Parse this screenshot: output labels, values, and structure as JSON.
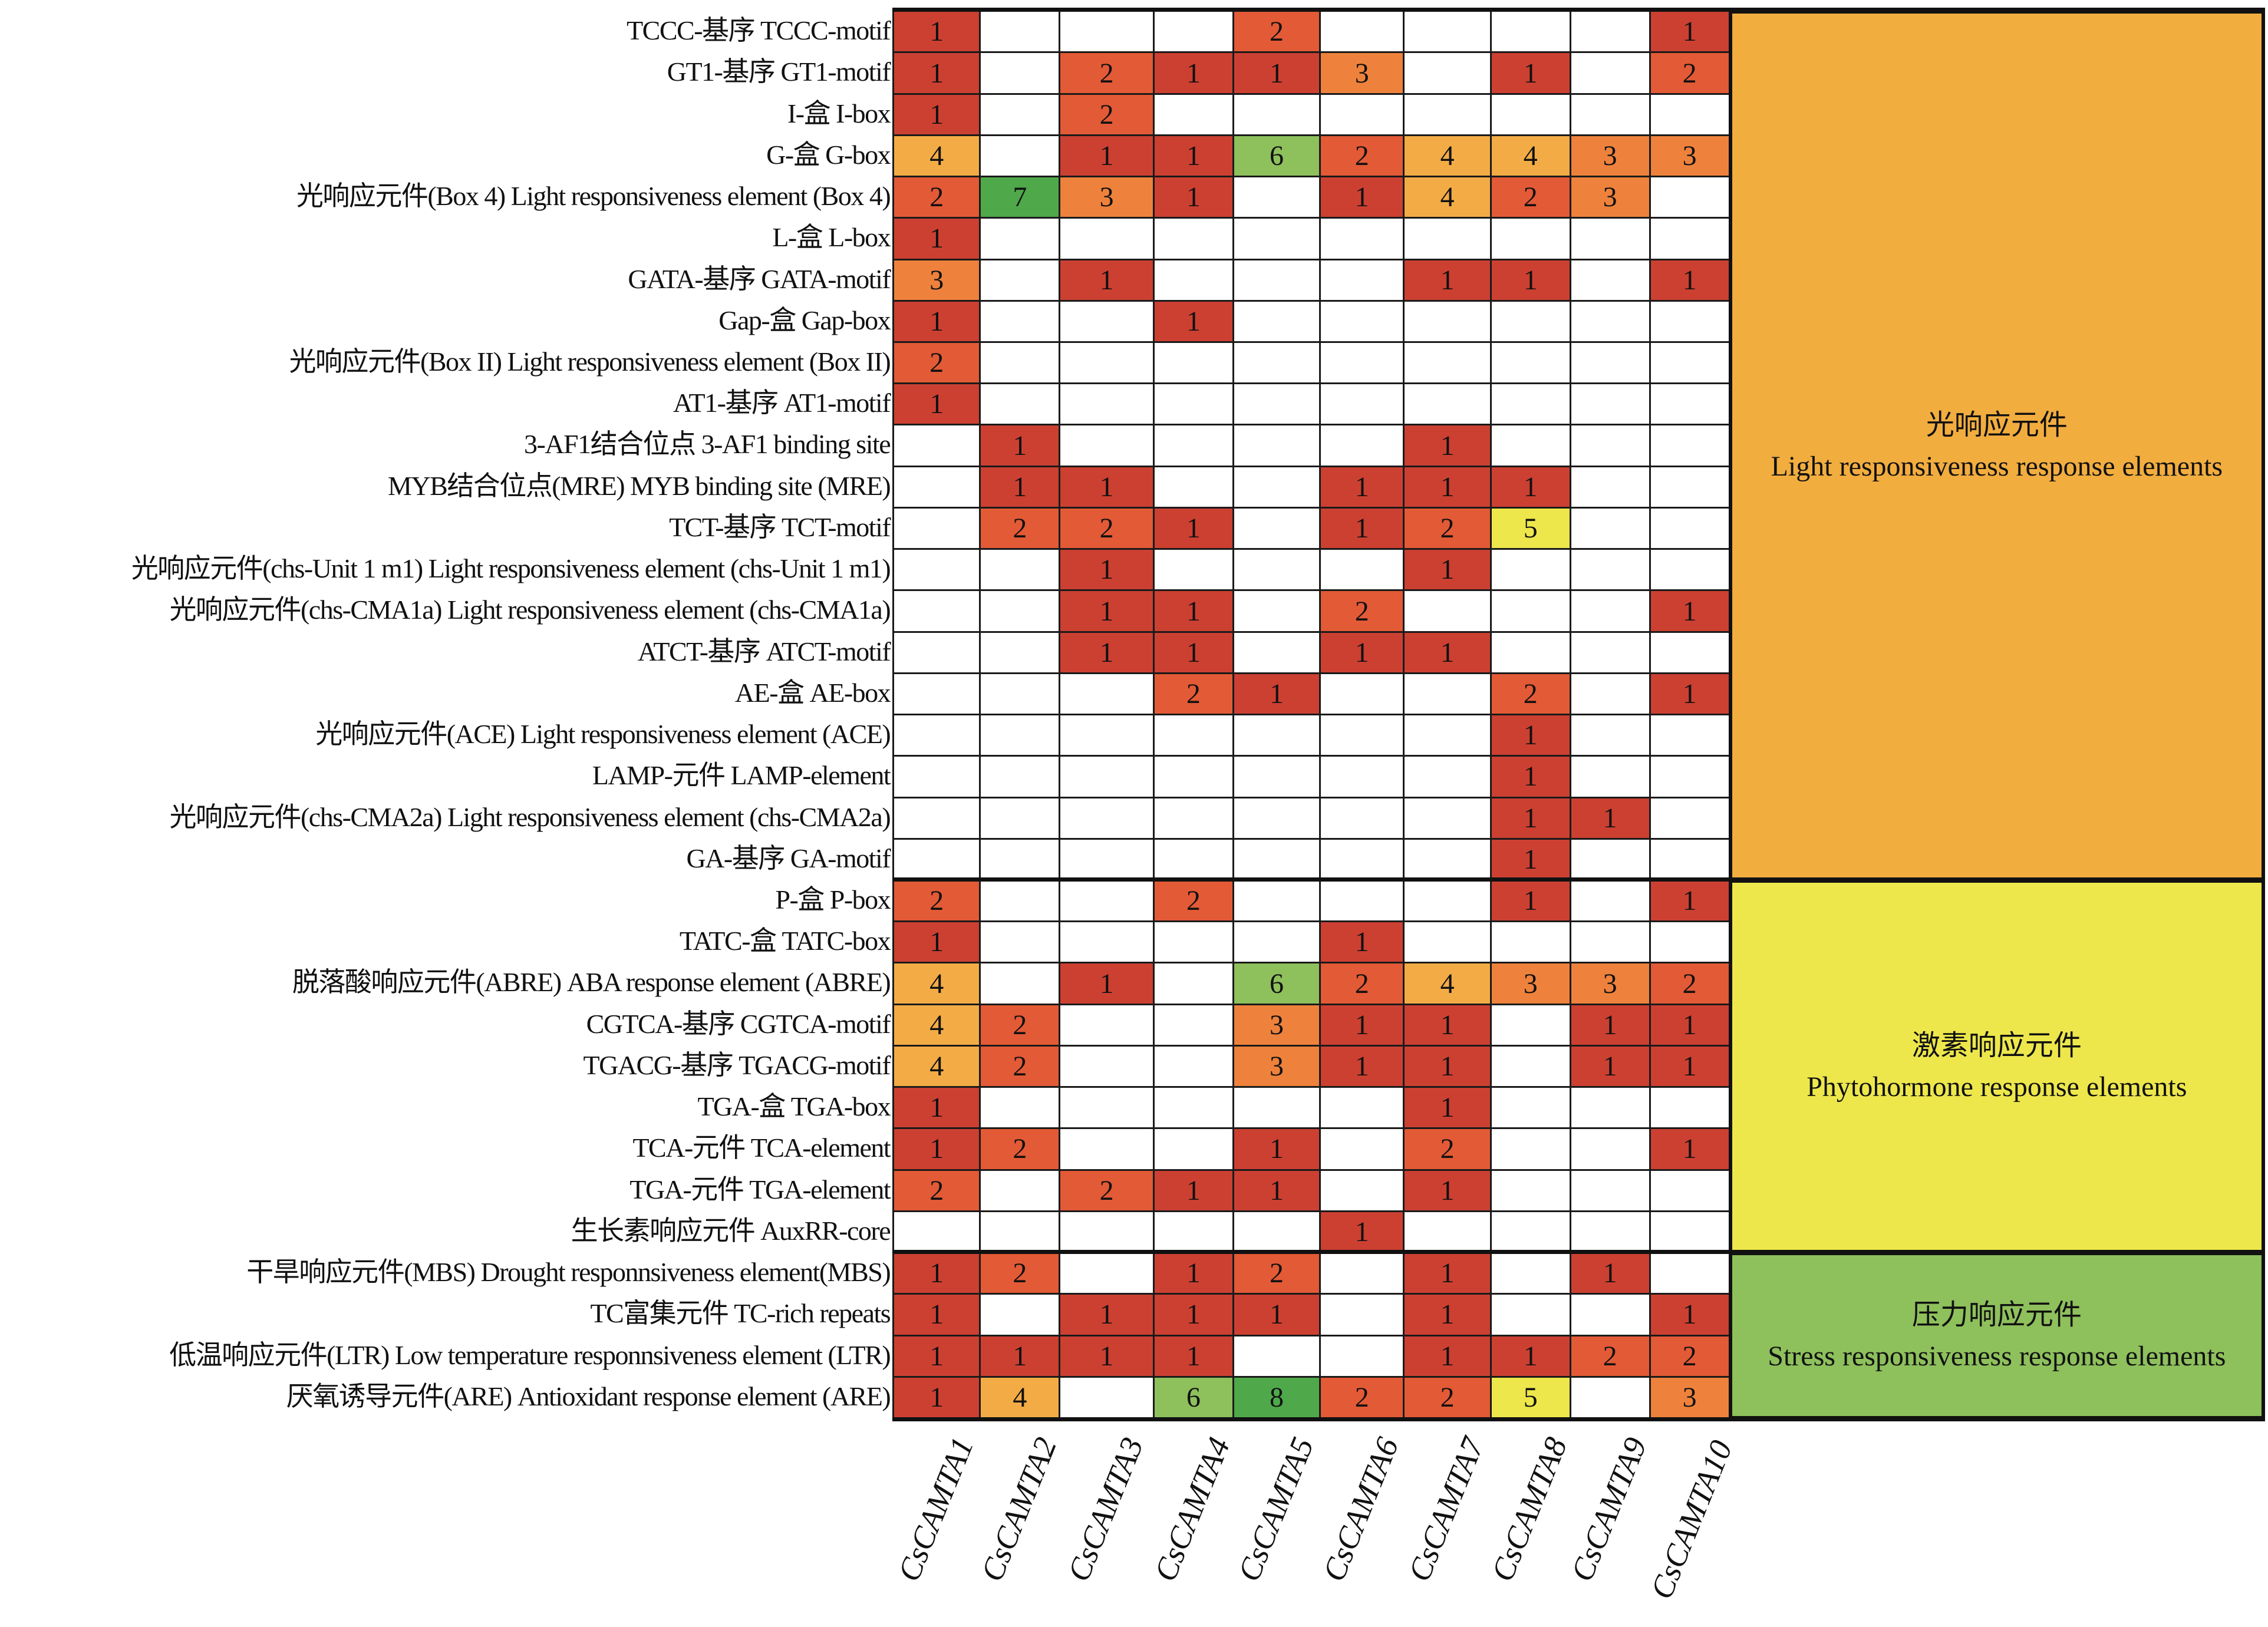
{
  "chart_data": {
    "type": "heatmap",
    "title": "",
    "columns": [
      "CsCAMTA1",
      "CsCAMTA2",
      "CsCAMTA3",
      "CsCAMTA4",
      "CsCAMTA5",
      "CsCAMTA6",
      "CsCAMTA7",
      "CsCAMTA8",
      "CsCAMTA9",
      "CsCAMTA10"
    ],
    "color_scale": {
      "1": "#cc4032",
      "2": "#e35a36",
      "3": "#ee823c",
      "4": "#f3ac45",
      "5": "#ede74c",
      "6": "#8ec05c",
      "7": "#4fa94a",
      "8": "#4fa94a",
      "empty": "#ffffff"
    },
    "rows": [
      {
        "label": "TCCC-基序 TCCC-motif",
        "group": 0,
        "values": [
          1,
          null,
          null,
          null,
          2,
          null,
          null,
          null,
          null,
          1
        ]
      },
      {
        "label": "GT1-基序 GT1-motif",
        "group": 0,
        "values": [
          1,
          null,
          2,
          1,
          1,
          3,
          null,
          1,
          null,
          2
        ]
      },
      {
        "label": "I-盒 I-box",
        "group": 0,
        "values": [
          1,
          null,
          2,
          null,
          null,
          null,
          null,
          null,
          null,
          null
        ]
      },
      {
        "label": "G-盒 G-box",
        "group": 0,
        "values": [
          4,
          null,
          1,
          1,
          6,
          2,
          4,
          4,
          3,
          3
        ]
      },
      {
        "label": "光响应元件(Box 4) Light responsiveness element (Box 4)",
        "group": 0,
        "values": [
          2,
          7,
          3,
          1,
          null,
          1,
          4,
          2,
          3,
          null
        ]
      },
      {
        "label": "L-盒 L-box",
        "group": 0,
        "values": [
          1,
          null,
          null,
          null,
          null,
          null,
          null,
          null,
          null,
          null
        ]
      },
      {
        "label": "GATA-基序 GATA-motif",
        "group": 0,
        "values": [
          3,
          null,
          1,
          null,
          null,
          null,
          1,
          1,
          null,
          1
        ]
      },
      {
        "label": "Gap-盒 Gap-box",
        "group": 0,
        "values": [
          1,
          null,
          null,
          1,
          null,
          null,
          null,
          null,
          null,
          null
        ]
      },
      {
        "label": "光响应元件(Box II) Light responsiveness element (Box II)",
        "group": 0,
        "values": [
          2,
          null,
          null,
          null,
          null,
          null,
          null,
          null,
          null,
          null
        ]
      },
      {
        "label": "AT1-基序 AT1-motif",
        "group": 0,
        "values": [
          1,
          null,
          null,
          null,
          null,
          null,
          null,
          null,
          null,
          null
        ]
      },
      {
        "label": "3-AF1结合位点 3-AF1 binding site",
        "group": 0,
        "values": [
          null,
          1,
          null,
          null,
          null,
          null,
          1,
          null,
          null,
          null
        ]
      },
      {
        "label": "MYB结合位点(MRE)  MYB binding site (MRE)",
        "group": 0,
        "values": [
          null,
          1,
          1,
          null,
          null,
          1,
          1,
          1,
          null,
          null
        ]
      },
      {
        "label": "TCT-基序 TCT-motif",
        "group": 0,
        "values": [
          null,
          2,
          2,
          1,
          null,
          1,
          2,
          5,
          null,
          null
        ]
      },
      {
        "label": "光响应元件(chs-Unit 1 m1) Light responsiveness element (chs-Unit 1 m1)",
        "group": 0,
        "values": [
          null,
          null,
          1,
          null,
          null,
          null,
          1,
          null,
          null,
          null
        ]
      },
      {
        "label": "光响应元件(chs-CMA1a) Light responsiveness element (chs-CMA1a)",
        "group": 0,
        "values": [
          null,
          null,
          1,
          1,
          null,
          2,
          null,
          null,
          null,
          1
        ]
      },
      {
        "label": "ATCT-基序 ATCT-motif",
        "group": 0,
        "values": [
          null,
          null,
          1,
          1,
          null,
          1,
          1,
          null,
          null,
          null
        ]
      },
      {
        "label": "AE-盒 AE-box",
        "group": 0,
        "values": [
          null,
          null,
          null,
          2,
          1,
          null,
          null,
          2,
          null,
          1
        ]
      },
      {
        "label": "光响应元件(ACE) Light responsiveness element (ACE)",
        "group": 0,
        "values": [
          null,
          null,
          null,
          null,
          null,
          null,
          null,
          1,
          null,
          null
        ]
      },
      {
        "label": "LAMP-元件 LAMP-element",
        "group": 0,
        "values": [
          null,
          null,
          null,
          null,
          null,
          null,
          null,
          1,
          null,
          null
        ]
      },
      {
        "label": "光响应元件(chs-CMA2a) Light responsiveness element (chs-CMA2a)",
        "group": 0,
        "values": [
          null,
          null,
          null,
          null,
          null,
          null,
          null,
          1,
          1,
          null
        ]
      },
      {
        "label": "GA-基序 GA-motif",
        "group": 0,
        "values": [
          null,
          null,
          null,
          null,
          null,
          null,
          null,
          1,
          null,
          null
        ]
      },
      {
        "label": "P-盒 P-box",
        "group": 1,
        "values": [
          2,
          null,
          null,
          2,
          null,
          null,
          null,
          1,
          null,
          1
        ]
      },
      {
        "label": "TATC-盒  TATC-box",
        "group": 1,
        "values": [
          1,
          null,
          null,
          null,
          null,
          1,
          null,
          null,
          null,
          null
        ]
      },
      {
        "label": "脱落酸响应元件(ABRE) ABA response element (ABRE)",
        "group": 1,
        "values": [
          4,
          null,
          1,
          null,
          6,
          2,
          4,
          3,
          3,
          2
        ]
      },
      {
        "label": "CGTCA-基序 CGTCA-motif",
        "group": 1,
        "values": [
          4,
          2,
          null,
          null,
          3,
          1,
          1,
          null,
          1,
          1
        ]
      },
      {
        "label": "TGACG-基序 TGACG-motif",
        "group": 1,
        "values": [
          4,
          2,
          null,
          null,
          3,
          1,
          1,
          null,
          1,
          1
        ]
      },
      {
        "label": "TGA-盒 TGA-box",
        "group": 1,
        "values": [
          1,
          null,
          null,
          null,
          null,
          null,
          1,
          null,
          null,
          null
        ]
      },
      {
        "label": "TCA-元件 TCA-element",
        "group": 1,
        "values": [
          1,
          2,
          null,
          null,
          1,
          null,
          2,
          null,
          null,
          1
        ]
      },
      {
        "label": "TGA-元件 TGA-element",
        "group": 1,
        "values": [
          2,
          null,
          2,
          1,
          1,
          null,
          1,
          null,
          null,
          null
        ]
      },
      {
        "label": "生长素响应元件 AuxRR-core",
        "group": 1,
        "values": [
          null,
          null,
          null,
          null,
          null,
          1,
          null,
          null,
          null,
          null
        ]
      },
      {
        "label": "干旱响应元件(MBS) Drought responnsiveness element(MBS)",
        "group": 2,
        "values": [
          1,
          2,
          null,
          1,
          2,
          null,
          1,
          null,
          1,
          null
        ]
      },
      {
        "label": "TC富集元件 TC-rich repeats",
        "group": 2,
        "values": [
          1,
          null,
          1,
          1,
          1,
          null,
          1,
          null,
          null,
          1
        ]
      },
      {
        "label": "低温响应元件(LTR) Low temperature responnsiveness element (LTR)",
        "group": 2,
        "values": [
          1,
          1,
          1,
          1,
          null,
          null,
          1,
          1,
          2,
          2
        ]
      },
      {
        "label": "厌氧诱导元件(ARE) Antioxidant response element (ARE)",
        "group": 2,
        "values": [
          1,
          4,
          null,
          6,
          8,
          2,
          2,
          5,
          null,
          3
        ]
      }
    ],
    "groups": [
      {
        "label_cn": "光响应元件",
        "label_en": "Light responsiveness response elements",
        "color": "#f2ad3f",
        "rows": [
          0,
          20
        ]
      },
      {
        "label_cn": "激素响应元件",
        "label_en": "Phytohormone response elements",
        "color": "#ede74c",
        "rows": [
          21,
          29
        ]
      },
      {
        "label_cn": "压力响应元件",
        "label_en": "Stress responsiveness response elements",
        "color": "#8ec05c",
        "rows": [
          30,
          33
        ]
      }
    ]
  }
}
